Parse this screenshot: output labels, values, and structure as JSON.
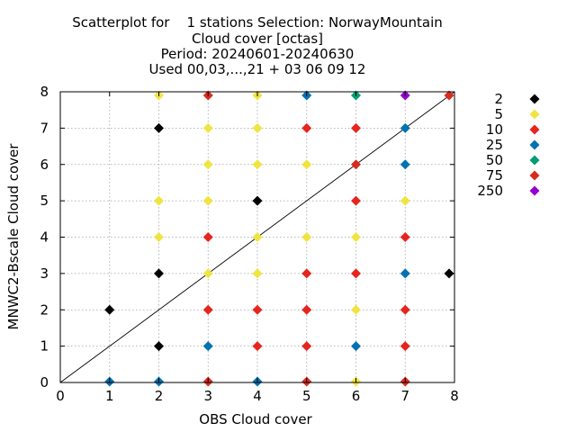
{
  "chart_data": {
    "type": "scatter",
    "title_lines": [
      "Scatterplot for    1 stations Selection: NorwayMountain",
      "Cloud cover [octas]",
      "Period: 20240601-20240630",
      "Used 00,03,...,21 + 03 06 09 12"
    ],
    "xlabel": "OBS Cloud cover",
    "ylabel": "MNWC2-Bscale Cloud cover",
    "xlim": [
      0,
      8
    ],
    "ylim": [
      0,
      8
    ],
    "xticks": [
      "0",
      "1",
      "2",
      "3",
      "4",
      "5",
      "6",
      "7",
      "8"
    ],
    "yticks": [
      "0",
      "1",
      "2",
      "3",
      "4",
      "5",
      "6",
      "7",
      "8"
    ],
    "grid": true,
    "diagonal": true,
    "legend_position": "right",
    "series": [
      {
        "name": "2",
        "color": "#000000",
        "points": [
          [
            1,
            2
          ],
          [
            2,
            7
          ],
          [
            2,
            3
          ],
          [
            2,
            1
          ],
          [
            4,
            5
          ],
          [
            8,
            3
          ]
        ]
      },
      {
        "name": "5",
        "color": "#f0e442",
        "points": [
          [
            2,
            8
          ],
          [
            2,
            5
          ],
          [
            2,
            4
          ],
          [
            3,
            7
          ],
          [
            3,
            6
          ],
          [
            3,
            5
          ],
          [
            3,
            3
          ],
          [
            4,
            8
          ],
          [
            4,
            7
          ],
          [
            4,
            6
          ],
          [
            4,
            4
          ],
          [
            4,
            3
          ],
          [
            5,
            6
          ],
          [
            5,
            4
          ],
          [
            6,
            4
          ],
          [
            6,
            2
          ],
          [
            6,
            0
          ],
          [
            7,
            5
          ]
        ]
      },
      {
        "name": "10",
        "color": "#e5251e",
        "points": [
          [
            3,
            4
          ],
          [
            3,
            2
          ],
          [
            4,
            2
          ],
          [
            4,
            1
          ],
          [
            5,
            7
          ],
          [
            5,
            3
          ],
          [
            5,
            2
          ],
          [
            5,
            1
          ],
          [
            6,
            7
          ],
          [
            6,
            5
          ],
          [
            6,
            3
          ],
          [
            7,
            4
          ],
          [
            7,
            2
          ],
          [
            7,
            1
          ]
        ]
      },
      {
        "name": "25",
        "color": "#0072b2",
        "points": [
          [
            1,
            0
          ],
          [
            2,
            0
          ],
          [
            3,
            1
          ],
          [
            4,
            0
          ],
          [
            5,
            8
          ],
          [
            6,
            1
          ],
          [
            7,
            7
          ],
          [
            7,
            6
          ],
          [
            7,
            3
          ]
        ]
      },
      {
        "name": "50",
        "color": "#009e73",
        "points": [
          [
            6,
            8
          ]
        ]
      },
      {
        "name": "75",
        "color": "#d92b1f",
        "points": [
          [
            3,
            8
          ],
          [
            3,
            0
          ],
          [
            5,
            0
          ],
          [
            6,
            6
          ],
          [
            7,
            0
          ],
          [
            8,
            8
          ]
        ]
      },
      {
        "name": "250",
        "color": "#9400d3",
        "points": [
          [
            7,
            8
          ]
        ]
      }
    ]
  }
}
